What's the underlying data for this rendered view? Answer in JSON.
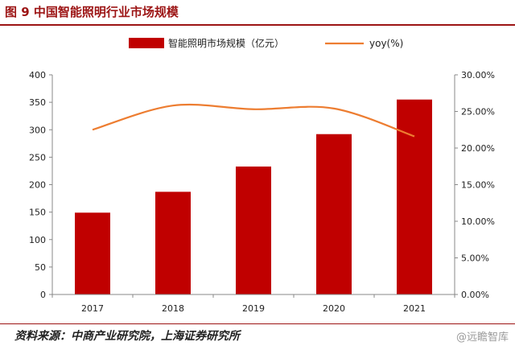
{
  "figure": {
    "title": "图 9 中国智能照明行业市场规模",
    "source": "资料来源：中商产业研究院，上海证券研究所",
    "watermark": "@远瞻智库"
  },
  "colors": {
    "bar": "#c00000",
    "line": "#ed7d31",
    "accent": "#9c1414"
  },
  "chart_data": {
    "type": "bar",
    "categories": [
      "2017",
      "2018",
      "2019",
      "2020",
      "2021"
    ],
    "series": [
      {
        "name": "智能照明市场规模（亿元）",
        "type": "bar",
        "axis": "left",
        "values": [
          149,
          187,
          233,
          292,
          355
        ]
      },
      {
        "name": "yoy(%)",
        "type": "line",
        "axis": "right",
        "values": [
          0.225,
          0.258,
          0.253,
          0.254,
          0.216
        ]
      }
    ],
    "yleft": {
      "min": 0,
      "max": 400,
      "step": 50,
      "tick_labels": [
        "0",
        "50",
        "100",
        "150",
        "200",
        "250",
        "300",
        "350",
        "400"
      ]
    },
    "yright": {
      "min": 0,
      "max": 0.3,
      "step": 0.05,
      "tick_labels": [
        "0.00%",
        "5.00%",
        "10.00%",
        "15.00%",
        "20.00%",
        "25.00%",
        "30.00%"
      ]
    },
    "legend_position": "top",
    "grid": false
  }
}
